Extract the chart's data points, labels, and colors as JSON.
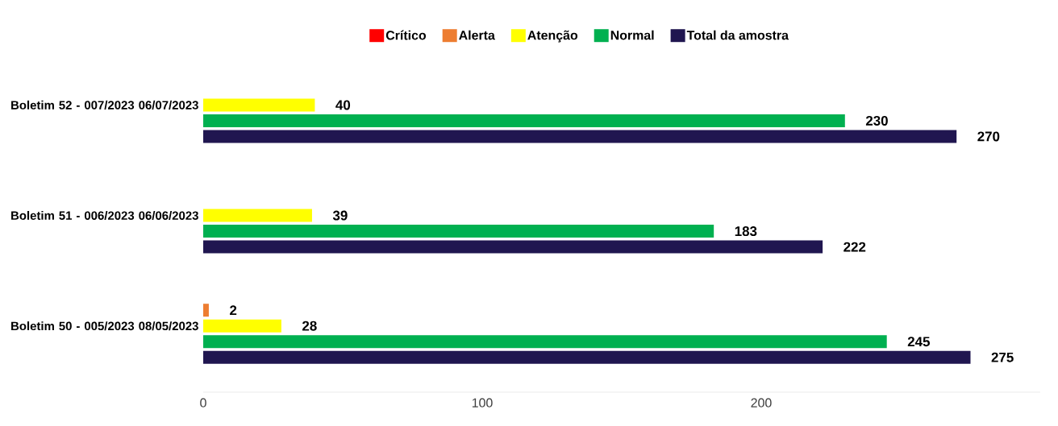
{
  "chart_data": {
    "type": "bar",
    "orientation": "horizontal",
    "categories": [
      "Boletim 52 - 007/2023 06/07/2023",
      "Boletim 51 - 006/2023 06/06/2023",
      "Boletim 50 - 005/2023 08/05/2023"
    ],
    "series": [
      {
        "name": "Crítico",
        "color": "#ff0000",
        "values": [
          0,
          0,
          0
        ],
        "value_labels": [
          null,
          null,
          null
        ]
      },
      {
        "name": "Alerta",
        "color": "#ed7d31",
        "values": [
          0,
          0,
          2
        ],
        "value_labels": [
          null,
          null,
          "2"
        ]
      },
      {
        "name": "Atenção",
        "color": "#ffff00",
        "values": [
          40,
          39,
          28
        ],
        "value_labels": [
          "40",
          "39",
          "28"
        ]
      },
      {
        "name": "Normal",
        "color": "#00b050",
        "values": [
          230,
          183,
          245
        ],
        "value_labels": [
          "230",
          "183",
          "245"
        ]
      },
      {
        "name": "Total da amostra",
        "color": "#201650",
        "values": [
          270,
          222,
          275
        ],
        "value_labels": [
          "270",
          "222",
          "275"
        ]
      }
    ],
    "xlim": [
      0,
      300
    ],
    "xticks": [
      0,
      100,
      200
    ],
    "legend": "top",
    "grid": false
  }
}
